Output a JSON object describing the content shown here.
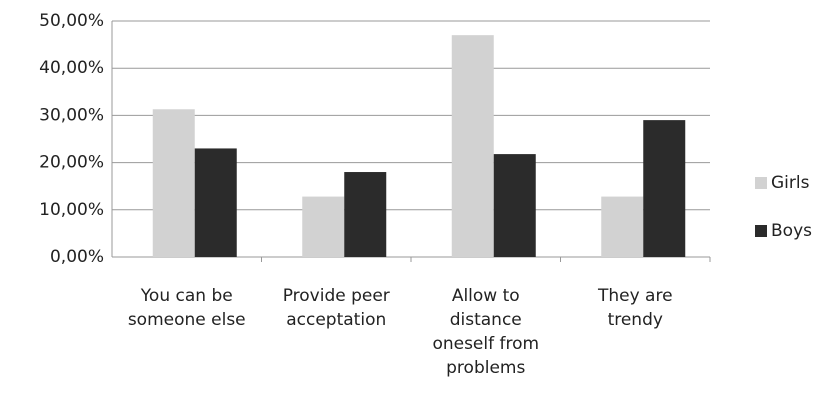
{
  "chart_data": {
    "type": "bar",
    "categories": [
      "You can be someone else",
      "Provide peer acceptation",
      "Allow to distance oneself from problems",
      "They are trendy"
    ],
    "series": [
      {
        "name": "Girls",
        "color": "#d2d2d2",
        "values": [
          31.3,
          12.8,
          47,
          12.8
        ]
      },
      {
        "name": "Boys",
        "color": "#2b2b2b",
        "values": [
          23,
          18,
          21.8,
          29
        ]
      }
    ],
    "ylim": [
      0,
      50
    ],
    "yticks": [
      {
        "value": 0,
        "label": "0,00%"
      },
      {
        "value": 10,
        "label": "10,00%"
      },
      {
        "value": 20,
        "label": "20,00%"
      },
      {
        "value": 30,
        "label": "30,00%"
      },
      {
        "value": 40,
        "label": "40,00%"
      },
      {
        "value": 50,
        "label": "50,00%"
      }
    ],
    "grid": true,
    "legend": "right"
  }
}
